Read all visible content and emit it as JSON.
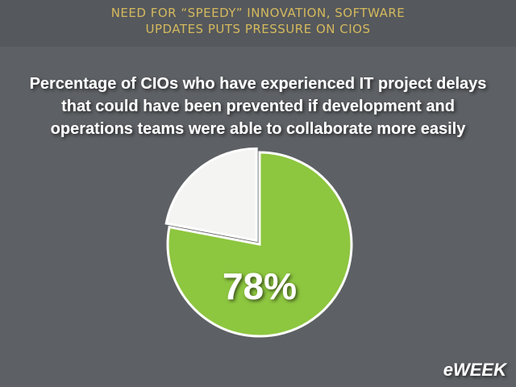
{
  "header": {
    "lines": [
      "NEED FOR “SPEEDY” INNOVATION, SOFTWARE",
      "UPDATES PUTS PRESSURE ON CIOS"
    ]
  },
  "chart_data": {
    "type": "pie",
    "title": [
      "Percentage of CIOs who have experienced IT project delays",
      "that could have been prevented if development and",
      "operations teams were able to collaborate more easily"
    ],
    "categories": [
      null,
      null
    ],
    "values": [
      78,
      22
    ],
    "value_labels": [
      "78%",
      null
    ],
    "colors": [
      "#8dc63f",
      "#f4f4f2"
    ]
  },
  "logo": "eWEEK"
}
